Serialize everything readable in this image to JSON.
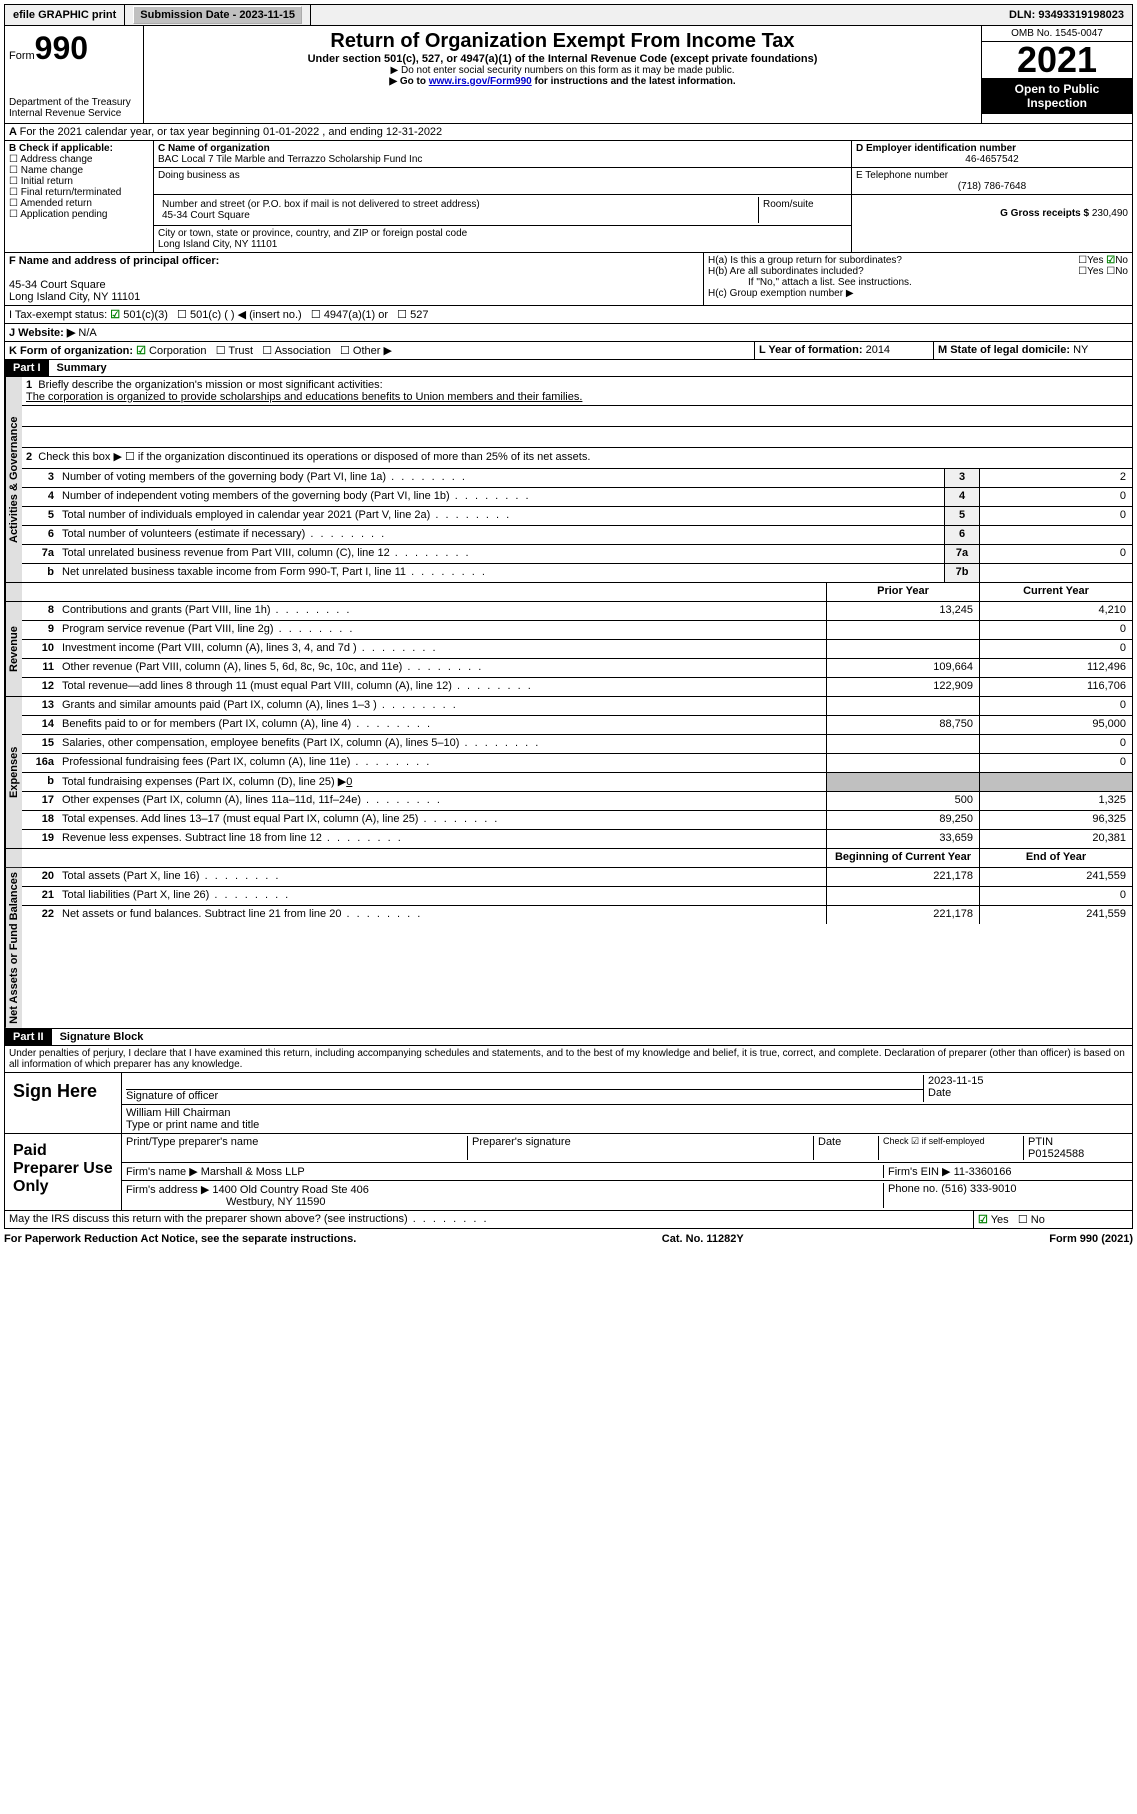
{
  "topbar": {
    "efile": "efile GRAPHIC print",
    "submission_label": "Submission Date - 2023-11-15",
    "dln": "DLN: 93493319198023"
  },
  "header": {
    "form_word": "Form",
    "form_num": "990",
    "title": "Return of Organization Exempt From Income Tax",
    "sub1": "Under section 501(c), 527, or 4947(a)(1) of the Internal Revenue Code (except private foundations)",
    "sub2": "▶ Do not enter social security numbers on this form as it may be made public.",
    "sub3_pre": "▶ Go to ",
    "sub3_link": "www.irs.gov/Form990",
    "sub3_post": " for instructions and the latest information.",
    "dept": "Department of the Treasury",
    "irs": "Internal Revenue Service",
    "omb": "OMB No. 1545-0047",
    "year": "2021",
    "open": "Open to Public Inspection"
  },
  "line_a": "For the 2021 calendar year, or tax year beginning 01-01-2022    , and ending 12-31-2022",
  "box_b": {
    "label": "B Check if applicable:",
    "items": [
      "Address change",
      "Name change",
      "Initial return",
      "Final return/terminated",
      "Amended return",
      "Application pending"
    ]
  },
  "box_c": {
    "name_label": "C Name of organization",
    "name": "BAC Local 7 Tile Marble and Terrazzo Scholarship Fund Inc",
    "dba_label": "Doing business as",
    "addr_label": "Number and street (or P.O. box if mail is not delivered to street address)",
    "room_label": "Room/suite",
    "addr": "45-34 Court Square",
    "city_label": "City or town, state or province, country, and ZIP or foreign postal code",
    "city": "Long Island City, NY  11101"
  },
  "box_d": {
    "label": "D Employer identification number",
    "ein": "46-4657542"
  },
  "box_e": {
    "label": "E Telephone number",
    "phone": "(718) 786-7648"
  },
  "box_g": {
    "label": "G Gross receipts $",
    "amount": "230,490"
  },
  "box_f": {
    "label": "F  Name and address of principal officer:",
    "addr1": "45-34 Court Square",
    "addr2": "Long Island City, NY  11101"
  },
  "box_h": {
    "a": "H(a)  Is this a group return for subordinates?",
    "b": "H(b)  Are all subordinates included?",
    "note": "If \"No,\" attach a list. See instructions.",
    "c": "H(c)  Group exemption number ▶",
    "yes": "Yes",
    "no": "No"
  },
  "box_i": {
    "label": "I   Tax-exempt status:",
    "opt1": "501(c)(3)",
    "opt2": "501(c) (  ) ◀ (insert no.)",
    "opt3": "4947(a)(1) or",
    "opt4": "527"
  },
  "box_j": {
    "label": "J   Website: ▶",
    "val": "N/A"
  },
  "box_k": {
    "label": "K Form of organization:",
    "opts": [
      "Corporation",
      "Trust",
      "Association",
      "Other ▶"
    ]
  },
  "box_l": {
    "label": "L Year of formation:",
    "val": "2014"
  },
  "box_m": {
    "label": "M State of legal domicile:",
    "val": "NY"
  },
  "part1": {
    "header": "Part I",
    "title": "Summary",
    "line1_label": "1",
    "line1_text": "Briefly describe the organization's mission or most significant activities:",
    "mission": "The corporation is organized to provide scholarships and educations benefits to Union members and their families.",
    "line2": "Check this box ▶ ☐  if the organization discontinued its operations or disposed of more than 25% of its net assets.",
    "sections": {
      "gov": "Activities & Governance",
      "rev": "Revenue",
      "exp": "Expenses",
      "net": "Net Assets or Fund Balances"
    },
    "lines": {
      "l3": {
        "n": "3",
        "d": "Number of voting members of the governing body (Part VI, line 1a)",
        "box": "3",
        "cy": "2"
      },
      "l4": {
        "n": "4",
        "d": "Number of independent voting members of the governing body (Part VI, line 1b)",
        "box": "4",
        "cy": "0"
      },
      "l5": {
        "n": "5",
        "d": "Total number of individuals employed in calendar year 2021 (Part V, line 2a)",
        "box": "5",
        "cy": "0"
      },
      "l6": {
        "n": "6",
        "d": "Total number of volunteers (estimate if necessary)",
        "box": "6",
        "cy": ""
      },
      "l7a": {
        "n": "7a",
        "d": "Total unrelated business revenue from Part VIII, column (C), line 12",
        "box": "7a",
        "cy": "0"
      },
      "l7b": {
        "n": "b",
        "d": "Net unrelated business taxable income from Form 990-T, Part I, line 11",
        "box": "7b",
        "cy": ""
      }
    },
    "pycy_head": {
      "py": "Prior Year",
      "cy": "Current Year"
    },
    "rev_lines": [
      {
        "n": "8",
        "d": "Contributions and grants (Part VIII, line 1h)",
        "py": "13,245",
        "cy": "4,210"
      },
      {
        "n": "9",
        "d": "Program service revenue (Part VIII, line 2g)",
        "py": "",
        "cy": "0"
      },
      {
        "n": "10",
        "d": "Investment income (Part VIII, column (A), lines 3, 4, and 7d )",
        "py": "",
        "cy": "0"
      },
      {
        "n": "11",
        "d": "Other revenue (Part VIII, column (A), lines 5, 6d, 8c, 9c, 10c, and 11e)",
        "py": "109,664",
        "cy": "112,496"
      },
      {
        "n": "12",
        "d": "Total revenue—add lines 8 through 11 (must equal Part VIII, column (A), line 12)",
        "py": "122,909",
        "cy": "116,706"
      }
    ],
    "exp_lines": [
      {
        "n": "13",
        "d": "Grants and similar amounts paid (Part IX, column (A), lines 1–3 )",
        "py": "",
        "cy": "0"
      },
      {
        "n": "14",
        "d": "Benefits paid to or for members (Part IX, column (A), line 4)",
        "py": "88,750",
        "cy": "95,000"
      },
      {
        "n": "15",
        "d": "Salaries, other compensation, employee benefits (Part IX, column (A), lines 5–10)",
        "py": "",
        "cy": "0"
      },
      {
        "n": "16a",
        "d": "Professional fundraising fees (Part IX, column (A), line 11e)",
        "py": "",
        "cy": "0"
      }
    ],
    "line16b": {
      "n": "b",
      "d_pre": "Total fundraising expenses (Part IX, column (D), line 25) ▶",
      "val": "0"
    },
    "exp_lines2": [
      {
        "n": "17",
        "d": "Other expenses (Part IX, column (A), lines 11a–11d, 11f–24e)",
        "py": "500",
        "cy": "1,325"
      },
      {
        "n": "18",
        "d": "Total expenses. Add lines 13–17 (must equal Part IX, column (A), line 25)",
        "py": "89,250",
        "cy": "96,325"
      },
      {
        "n": "19",
        "d": "Revenue less expenses. Subtract line 18 from line 12",
        "py": "33,659",
        "cy": "20,381"
      }
    ],
    "net_head": {
      "py": "Beginning of Current Year",
      "cy": "End of Year"
    },
    "net_lines": [
      {
        "n": "20",
        "d": "Total assets (Part X, line 16)",
        "py": "221,178",
        "cy": "241,559"
      },
      {
        "n": "21",
        "d": "Total liabilities (Part X, line 26)",
        "py": "",
        "cy": "0"
      },
      {
        "n": "22",
        "d": "Net assets or fund balances. Subtract line 21 from line 20",
        "py": "221,178",
        "cy": "241,559"
      }
    ]
  },
  "part2": {
    "header": "Part II",
    "title": "Signature Block",
    "decl": "Under penalties of perjury, I declare that I have examined this return, including accompanying schedules and statements, and to the best of my knowledge and belief, it is true, correct, and complete. Declaration of preparer (other than officer) is based on all information of which preparer has any knowledge.",
    "sign_here": "Sign Here",
    "sig_officer": "Signature of officer",
    "sig_date": "2023-11-15",
    "date_label": "Date",
    "officer_name": "William Hill Chairman",
    "type_name": "Type or print name and title",
    "paid": "Paid Preparer Use Only",
    "prep_name_label": "Print/Type preparer's name",
    "prep_sig_label": "Preparer's signature",
    "check_self": "Check ☑ if self-employed",
    "ptin_label": "PTIN",
    "ptin": "P01524588",
    "firm_name_label": "Firm's name    ▶",
    "firm_name": "Marshall & Moss LLP",
    "firm_ein_label": "Firm's EIN ▶",
    "firm_ein": "11-3360166",
    "firm_addr_label": "Firm's address ▶",
    "firm_addr1": "1400 Old Country Road Ste 406",
    "firm_addr2": "Westbury, NY  11590",
    "phone_label": "Phone no.",
    "phone": "(516) 333-9010",
    "discuss": "May the IRS discuss this return with the preparer shown above? (see instructions)",
    "yes": "Yes",
    "no": "No"
  },
  "footer": {
    "left": "For Paperwork Reduction Act Notice, see the separate instructions.",
    "mid": "Cat. No. 11282Y",
    "right": "Form 990 (2021)"
  }
}
